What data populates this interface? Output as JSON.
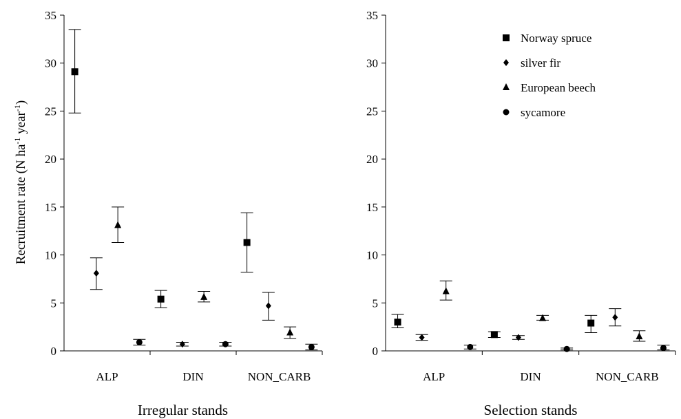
{
  "chart_data": {
    "type": "scatter",
    "ylabel_main": "Recruitment rate (N ha",
    "ylabel_sup1": "-1",
    "ylabel_mid": " year",
    "ylabel_sup2": "-1",
    "ylabel_end": ")",
    "ylim": [
      0,
      35
    ],
    "yticks": [
      "0",
      "5",
      "10",
      "15",
      "20",
      "25",
      "30",
      "35"
    ],
    "categories": [
      "ALP",
      "DIN",
      "NON_CARB"
    ],
    "legend": [
      {
        "name": "Norway spruce",
        "marker": "square"
      },
      {
        "name": "silver fir",
        "marker": "diamond"
      },
      {
        "name": "European beech",
        "marker": "triangle"
      },
      {
        "name": "sycamore",
        "marker": "circle"
      }
    ],
    "panels": [
      {
        "title": "Irregular stands",
        "series": [
          {
            "marker": "square",
            "values": [
              29.1,
              5.4,
              11.3
            ],
            "low": [
              24.8,
              4.5,
              8.2
            ],
            "high": [
              33.5,
              6.3,
              14.4
            ]
          },
          {
            "marker": "diamond",
            "values": [
              8.1,
              0.7,
              4.7
            ],
            "low": [
              6.4,
              0.5,
              3.2
            ],
            "high": [
              9.7,
              0.9,
              6.1
            ]
          },
          {
            "marker": "triangle",
            "values": [
              13.1,
              5.6,
              1.9
            ],
            "low": [
              11.3,
              5.1,
              1.3
            ],
            "high": [
              15.0,
              6.2,
              2.5
            ]
          },
          {
            "marker": "circle",
            "values": [
              0.9,
              0.7,
              0.4
            ],
            "low": [
              0.6,
              0.5,
              0.1
            ],
            "high": [
              1.2,
              0.9,
              0.7
            ]
          }
        ]
      },
      {
        "title": "Selection stands",
        "series": [
          {
            "marker": "square",
            "values": [
              3.0,
              1.7,
              2.9
            ],
            "low": [
              2.4,
              1.4,
              1.9
            ],
            "high": [
              3.8,
              2.0,
              3.7
            ]
          },
          {
            "marker": "diamond",
            "values": [
              1.4,
              1.4,
              3.5
            ],
            "low": [
              1.1,
              1.2,
              2.6
            ],
            "high": [
              1.7,
              1.6,
              4.4
            ]
          },
          {
            "marker": "triangle",
            "values": [
              6.2,
              3.4,
              1.5
            ],
            "low": [
              5.3,
              3.2,
              1.0
            ],
            "high": [
              7.3,
              3.7,
              2.1
            ]
          },
          {
            "marker": "circle",
            "values": [
              0.4,
              0.2,
              0.3
            ],
            "low": [
              0.2,
              0.1,
              0.1
            ],
            "high": [
              0.6,
              0.3,
              0.6
            ]
          }
        ]
      }
    ]
  }
}
